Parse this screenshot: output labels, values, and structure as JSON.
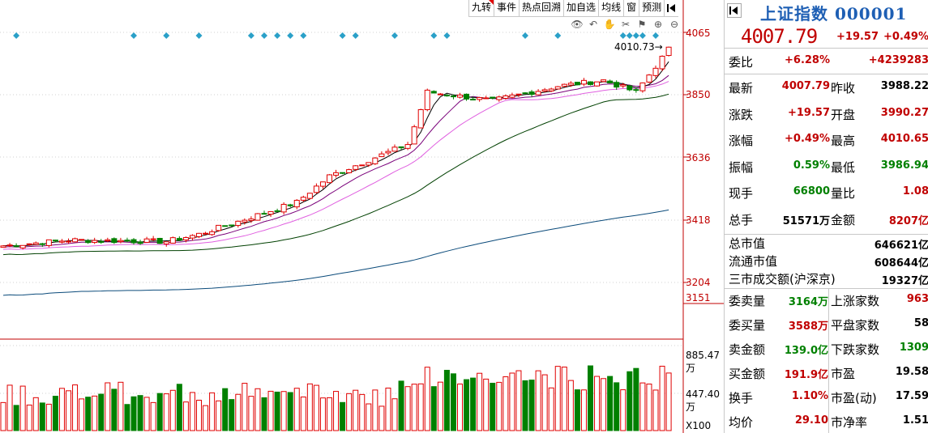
{
  "toolbar": {
    "items": [
      "九转",
      "事件",
      "热点回溯",
      "加自选",
      "均线",
      "窗",
      "预测"
    ]
  },
  "icons": [
    "eye-icon",
    "undo-icon",
    "hand-icon",
    "scissors-icon",
    "flag-icon",
    "zoom-in-icon",
    "zoom-out-icon"
  ],
  "chart": {
    "price_labels": [
      "4065",
      "3850",
      "3636",
      "3418",
      "3204",
      "3151"
    ],
    "volume_labels": [
      "885.47万",
      "447.40万"
    ],
    "volume_unit": "X100",
    "high_marker": "4010.73"
  },
  "chart_data": {
    "type": "candlestick",
    "ylim": [
      3151,
      4065
    ],
    "high": 4010.73,
    "colors": {
      "up": "#e00000",
      "down": "#008000",
      "ma5": "#000000",
      "ma10": "#7a007a",
      "ma20": "#e060e0",
      "ma60": "#004000",
      "ma120": "#0a4a7a"
    }
  },
  "panel": {
    "name": "上证指数",
    "code": "000001",
    "price": "4007.79",
    "change": "+19.57",
    "change_pct": "+0.49%",
    "weibi": {
      "label": "委比",
      "pct": "+6.28%",
      "diff": "+4239283"
    },
    "rows1": [
      {
        "l1": "最新",
        "v1": "4007.79",
        "c1": "red",
        "l2": "昨收",
        "v2": "3988.22",
        "c2": "blk"
      },
      {
        "l1": "涨跌",
        "v1": "+19.57",
        "c1": "red",
        "l2": "开盘",
        "v2": "3990.27",
        "c2": "red"
      },
      {
        "l1": "涨幅",
        "v1": "+0.49%",
        "c1": "red",
        "l2": "最高",
        "v2": "4010.65",
        "c2": "red"
      },
      {
        "l1": "振幅",
        "v1": "0.59%",
        "c1": "green",
        "l2": "最低",
        "v2": "3986.94",
        "c2": "green"
      },
      {
        "l1": "现手",
        "v1": "66800",
        "c1": "green",
        "l2": "量比",
        "v2": "1.08",
        "c2": "red"
      },
      {
        "l1": "总手",
        "v1": "51571万",
        "c1": "blk",
        "l2": "金额",
        "v2": "8207亿",
        "c2": "red"
      }
    ],
    "rows2": [
      {
        "l": "总市值",
        "v": "646621亿"
      },
      {
        "l": "流通市值",
        "v": "608644亿"
      },
      {
        "l": "三市成交额(沪深京)",
        "v": "19327亿"
      }
    ],
    "rows3": [
      {
        "l1": "委卖量",
        "v1": "3164万",
        "c1": "green",
        "l2": "上涨家数",
        "v2": "963",
        "c2": "red"
      },
      {
        "l1": "委买量",
        "v1": "3588万",
        "c1": "red",
        "l2": "平盘家数",
        "v2": "58",
        "c2": "blk"
      },
      {
        "l1": "卖金额",
        "v1": "139.0亿",
        "c1": "green",
        "l2": "下跌家数",
        "v2": "1309",
        "c2": "green"
      },
      {
        "l1": "买金额",
        "v1": "191.9亿",
        "c1": "red",
        "l2": "市盈",
        "v2": "19.58",
        "c2": "blk"
      },
      {
        "l1": "换手",
        "v1": "1.10%",
        "c1": "red",
        "l2": "市盈(动)",
        "v2": "17.59",
        "c2": "blk"
      },
      {
        "l1": "均价",
        "v1": "29.10",
        "c1": "red",
        "l2": "市净率",
        "v2": "1.51",
        "c2": "blk"
      }
    ]
  }
}
